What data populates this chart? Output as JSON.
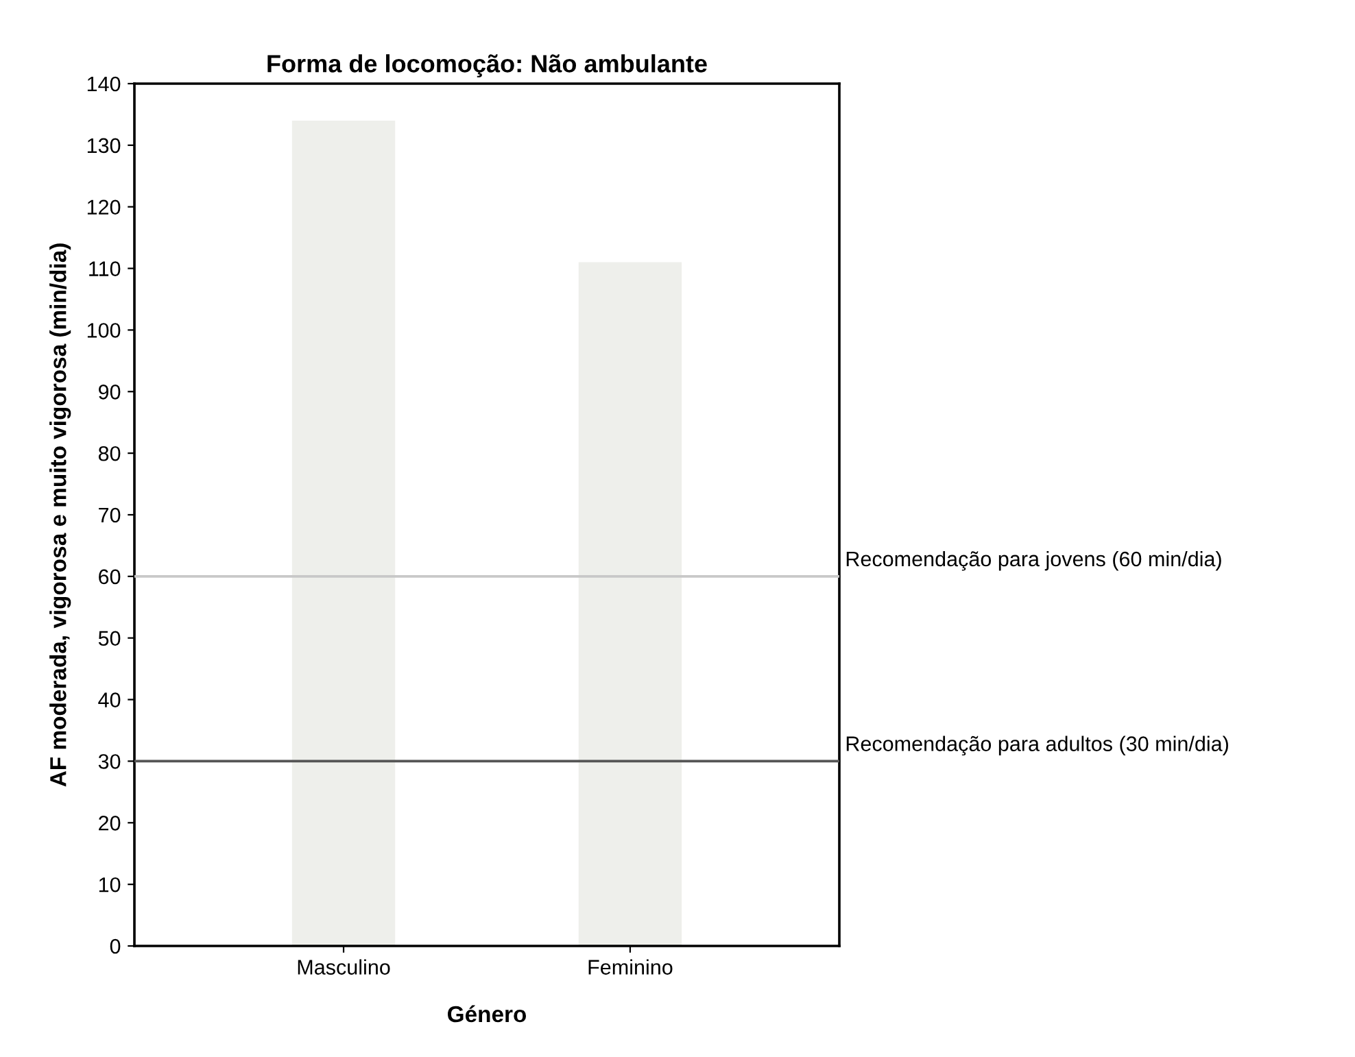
{
  "chart_data": {
    "type": "bar",
    "title": "Forma de locomoção: Não ambulante",
    "xlabel": "Género",
    "ylabel": "AF moderada, vigorosa e muito vigorosa (min/dia)",
    "categories": [
      "Masculino",
      "Feminino"
    ],
    "values": [
      134,
      111
    ],
    "color": "#eeefeb",
    "ylim": [
      0,
      140
    ],
    "yticks": [
      0,
      10,
      20,
      30,
      40,
      50,
      60,
      70,
      80,
      90,
      100,
      110,
      120,
      130,
      140
    ],
    "grid": false,
    "ref_lines": [
      {
        "axis": "y",
        "value": 60,
        "label": "Recomendação para jovens (60 min/dia)",
        "color": "#c8c8c8"
      },
      {
        "axis": "y",
        "value": 30,
        "label": "Recomendação para adultos (30 min/dia)",
        "color": "#555555"
      }
    ]
  }
}
